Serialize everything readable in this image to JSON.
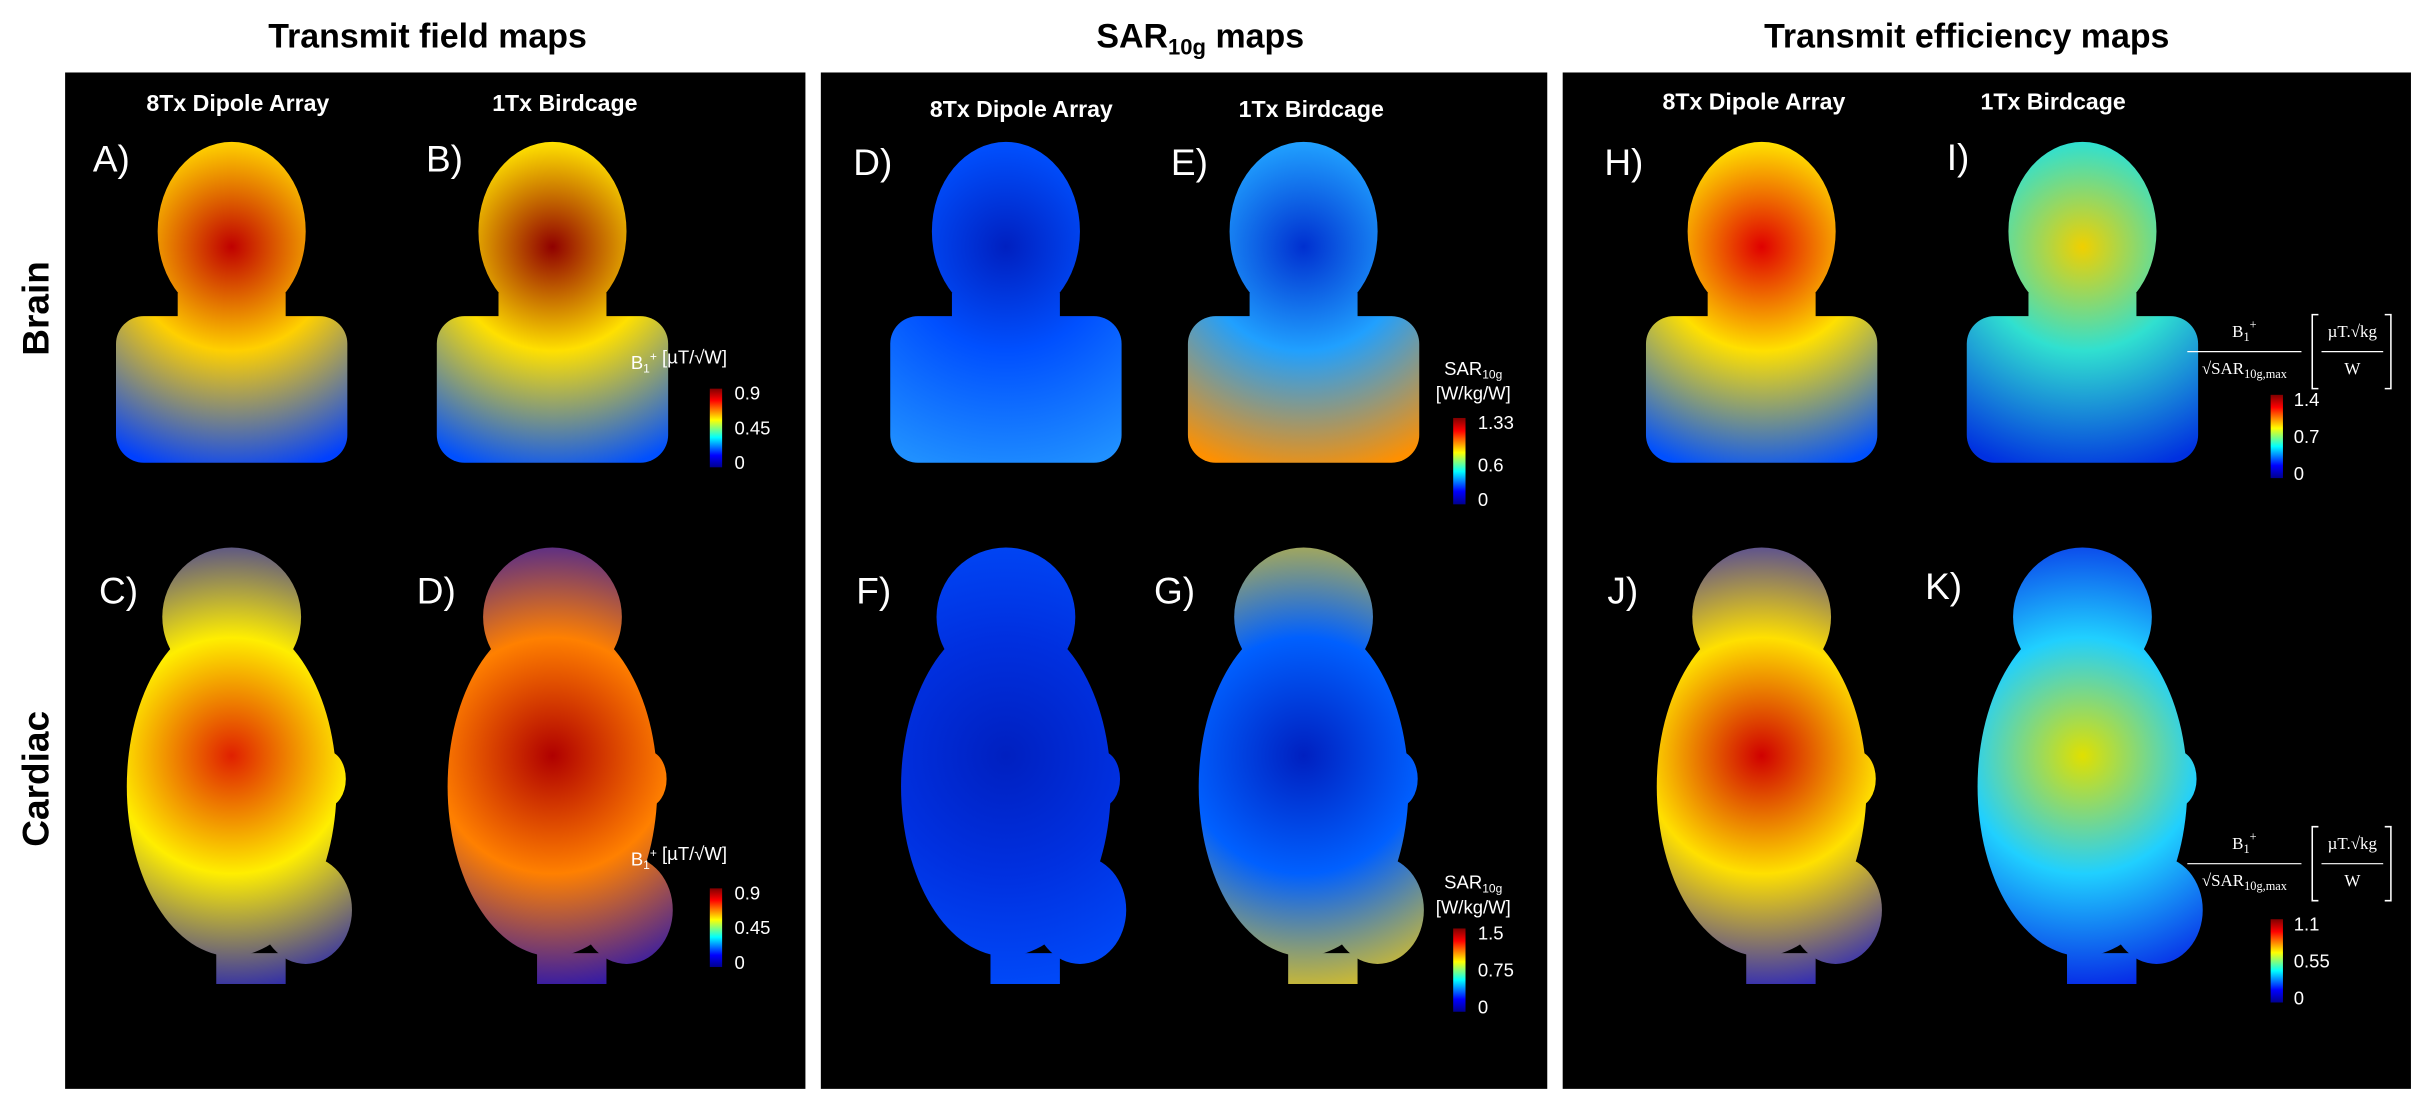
{
  "row_labels": [
    "Brain",
    "Cardiac"
  ],
  "panels": [
    {
      "title": {
        "main": "Transmit field maps"
      },
      "columns": [
        "8Tx Dipole Array",
        "1Tx Birdcage"
      ],
      "maps": [
        "A)",
        "B)",
        "C)",
        "D)"
      ],
      "colorbars": [
        {
          "title": {
            "main": "B",
            "sub": "1",
            "sup": "+",
            "unit": " [µT/√W]"
          },
          "ticks": [
            0.9,
            0.45,
            0
          ]
        },
        {
          "title": {
            "main": "B",
            "sub": "1",
            "sup": "+",
            "unit": " [µT/√W]"
          },
          "ticks": [
            0.9,
            0.45,
            0
          ]
        }
      ]
    },
    {
      "title": {
        "main": "SAR",
        "sub": "10g",
        "rest": " maps"
      },
      "columns": [
        "8Tx Dipole Array",
        "1Tx Birdcage"
      ],
      "maps": [
        "D)",
        "E)",
        "F)",
        "G)"
      ],
      "colorbars": [
        {
          "title": {
            "main": "SAR",
            "sub": "10g",
            "unit": "[W/kg/W]"
          },
          "ticks": [
            1.33,
            0.6,
            0
          ]
        },
        {
          "title": {
            "main": "SAR",
            "sub": "10g",
            "unit": "[W/kg/W]"
          },
          "ticks": [
            1.5,
            0.75,
            0
          ]
        }
      ]
    },
    {
      "title": {
        "main": "Transmit efficiency maps"
      },
      "columns": [
        "8Tx Dipole Array",
        "1Tx Birdcage"
      ],
      "maps": [
        "H)",
        "I)",
        "J)",
        "K)"
      ],
      "colorbars": [
        {
          "formula": {
            "num_main": "B",
            "num_sub": "1",
            "num_sup": "+",
            "den_main": "√SAR",
            "den_sub": "10g,max",
            "unit_num": "µT.√kg",
            "unit_den": "W"
          },
          "ticks": [
            1.4,
            0.7,
            0
          ]
        },
        {
          "formula": {
            "num_main": "B",
            "num_sub": "1",
            "num_sup": "+",
            "den_main": "√SAR",
            "den_sub": "10g,max",
            "unit_num": "µT.√kg",
            "unit_den": "W"
          },
          "ticks": [
            1.1,
            0.55,
            0
          ]
        }
      ]
    }
  ]
}
